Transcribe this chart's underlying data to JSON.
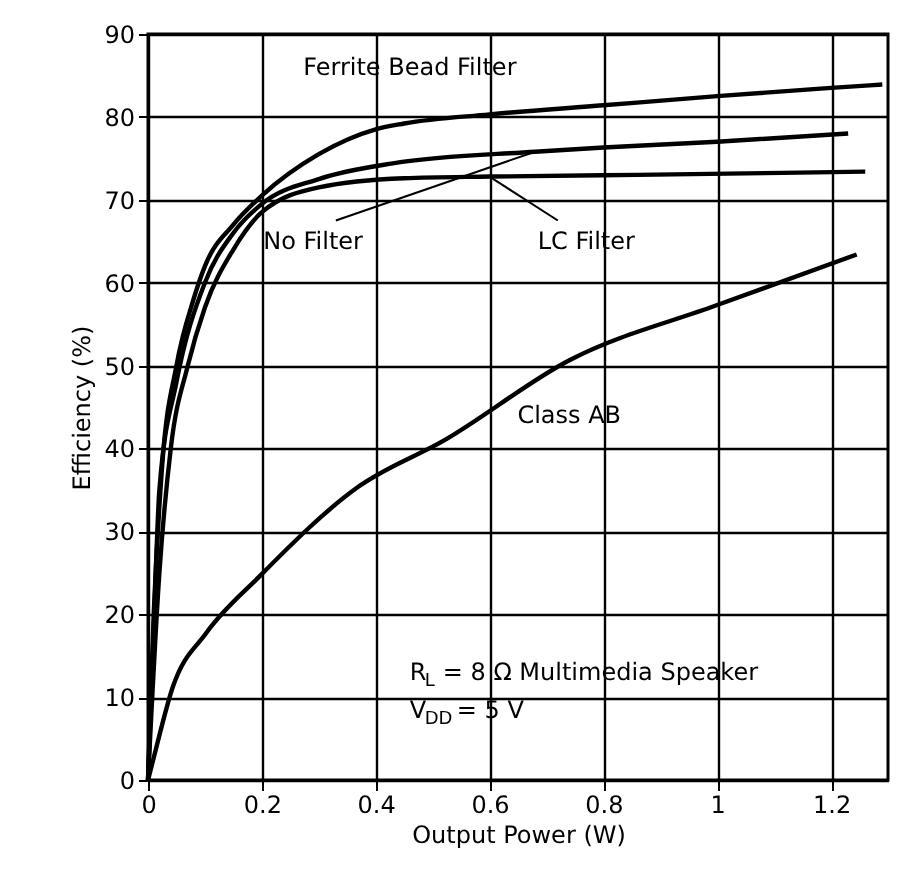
{
  "chart_data": {
    "type": "line",
    "xlabel": "Output Power (W)",
    "ylabel": "Efficiency (%)",
    "xlim": [
      0,
      1.3
    ],
    "xticks": [
      0,
      0.2,
      0.4,
      0.6,
      0.8,
      1,
      1.2
    ],
    "ylim": [
      0,
      90
    ],
    "yticks": [
      0,
      10,
      20,
      30,
      40,
      50,
      60,
      70,
      80,
      90
    ],
    "grid": true,
    "marker": "none",
    "line_style": "solid",
    "series": [
      {
        "name": "Ferrite Bead Filter",
        "color": "#000000",
        "x": [
          0,
          0.01,
          0.025,
          0.05,
          0.08,
          0.1,
          0.15,
          0.2,
          0.3,
          0.4,
          0.45,
          0.6,
          0.8,
          1.0,
          1.2,
          1.29
        ],
        "values": [
          0,
          20,
          38,
          50,
          58,
          62,
          67,
          70.5,
          75.5,
          78.5,
          79.2,
          80.3,
          81.4,
          82.5,
          83.5,
          83.9
        ]
      },
      {
        "name": "No Filter",
        "color": "#000000",
        "x": [
          0,
          0.01,
          0.02,
          0.05,
          0.1,
          0.15,
          0.2,
          0.3,
          0.43,
          0.68,
          0.8,
          1.0,
          1.23
        ],
        "values": [
          0,
          18,
          35,
          48,
          60,
          66,
          69.5,
          72.5,
          74.4,
          75.8,
          76.3,
          77,
          78
        ]
      },
      {
        "name": "LC Filter",
        "color": "#000000",
        "x": [
          0,
          0.02,
          0.04,
          0.07,
          0.1,
          0.15,
          0.2,
          0.3,
          0.45,
          0.6,
          0.86,
          1.26
        ],
        "values": [
          0,
          25,
          40,
          50,
          57,
          64,
          68.5,
          71.5,
          72.6,
          72.8,
          73,
          73.4
        ]
      },
      {
        "name": "Class AB",
        "color": "#000000",
        "x": [
          0,
          0.009,
          0.044,
          0.102,
          0.195,
          0.37,
          0.521,
          0.742,
          1.0,
          1.245
        ],
        "values": [
          0,
          2.4,
          11.3,
          17.7,
          24.5,
          35.4,
          41,
          50.7,
          57.3,
          63.4
        ]
      }
    ],
    "annotations": [
      "R$_{L}$ = 8 Ω Multimedia Speaker",
      "V$_{DD}$ = 5 V"
    ]
  }
}
